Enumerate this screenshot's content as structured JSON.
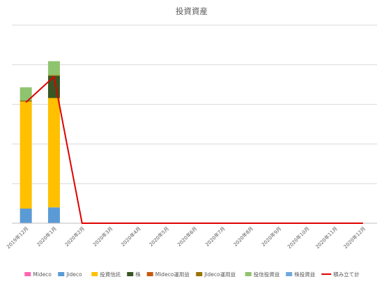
{
  "chart_data": {
    "type": "bar",
    "title": "投資資産",
    "categories": [
      "2019年12月",
      "2020年1月",
      "2020年2月",
      "2020年3月",
      "2020年4月",
      "2020年5月",
      "2020年6月",
      "2020年7月",
      "2020年8月",
      "2020年9月",
      "2020年10月",
      "2020年11月",
      "2020年12月"
    ],
    "ylim": [
      0,
      5
    ],
    "grid": true,
    "gridlines": [
      0,
      1,
      2,
      3,
      4,
      5
    ],
    "y_tick_labels_shown": false,
    "legend_position": "bottom",
    "stacked_series": [
      {
        "name": "Mideco",
        "color": "#ff66b2",
        "values": [
          0,
          0,
          0,
          0,
          0,
          0,
          0,
          0,
          0,
          0,
          0,
          0,
          0
        ]
      },
      {
        "name": "Jideco",
        "color": "#5b9bd5",
        "values": [
          0.37,
          0.4,
          0,
          0,
          0,
          0,
          0,
          0,
          0,
          0,
          0,
          0,
          0
        ]
      },
      {
        "name": "投資信託",
        "color": "#ffc000",
        "values": [
          2.7,
          2.76,
          0,
          0,
          0,
          0,
          0,
          0,
          0,
          0,
          0,
          0,
          0
        ]
      },
      {
        "name": "株",
        "color": "#375623",
        "values": [
          0,
          0.56,
          0,
          0,
          0,
          0,
          0,
          0,
          0,
          0,
          0,
          0,
          0
        ]
      },
      {
        "name": "Mideco運用益",
        "color": "#c55a11",
        "values": [
          0,
          0,
          0,
          0,
          0,
          0,
          0,
          0,
          0,
          0,
          0,
          0,
          0
        ]
      },
      {
        "name": "Jideco運用益",
        "color": "#997300",
        "values": [
          0.03,
          0.02,
          0,
          0,
          0,
          0,
          0,
          0,
          0,
          0,
          0,
          0,
          0
        ]
      },
      {
        "name": "投信投資益",
        "color": "#8fc46f",
        "values": [
          0.33,
          0.35,
          0,
          0,
          0,
          0,
          0,
          0,
          0,
          0,
          0,
          0,
          0
        ]
      },
      {
        "name": "株投資益",
        "color": "#6fa8dc",
        "values": [
          0,
          0,
          0,
          0,
          0,
          0,
          0,
          0,
          0,
          0,
          0,
          0,
          0
        ]
      }
    ],
    "line_series": {
      "name": "積み立て計",
      "color": "#e00000",
      "values": [
        3.05,
        3.7,
        0,
        0,
        0,
        0,
        0,
        0,
        0,
        0,
        0,
        0,
        0
      ]
    }
  }
}
